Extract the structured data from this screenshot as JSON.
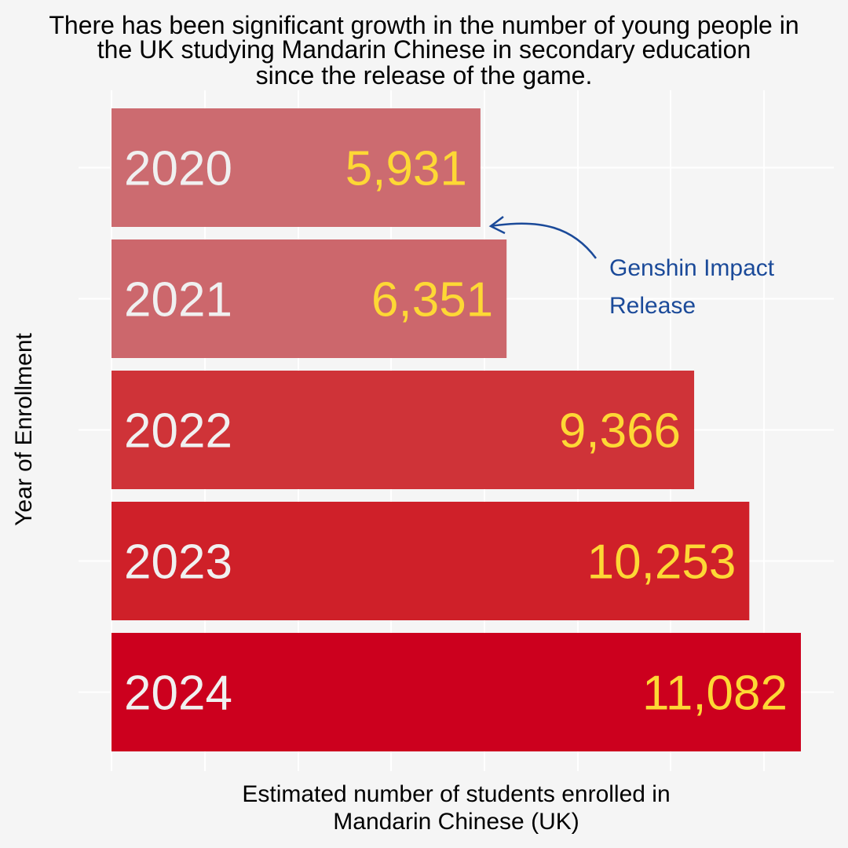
{
  "title_lines": [
    "There has been significant growth in the number of young people in",
    "the UK studying Mandarin Chinese in secondary education",
    "since the release of the game."
  ],
  "chart_data": {
    "type": "bar",
    "orientation": "horizontal",
    "categories": [
      "2020",
      "2021",
      "2022",
      "2023",
      "2024"
    ],
    "values": [
      5931,
      6351,
      9366,
      10253,
      11082
    ],
    "value_labels": [
      "5,931",
      "6,351",
      "9,366",
      "10,253",
      "11,082"
    ],
    "bar_colors": [
      "#cc6b70",
      "#cc676c",
      "#cf3338",
      "#cf2029",
      "#cc001e"
    ],
    "category_label_color": "#f0f0f0",
    "value_label_color": "#fdd835",
    "xlabel_lines": [
      "Estimated number of students enrolled in",
      "Mandarin Chinese (UK)"
    ],
    "ylabel": "Year of Enrollment",
    "xlim": [
      0,
      11082
    ],
    "grid": true,
    "annotation": {
      "text_lines": [
        "Genshin Impact",
        "Release"
      ],
      "points_to_category": "2020",
      "color": "#1b4a99"
    }
  }
}
